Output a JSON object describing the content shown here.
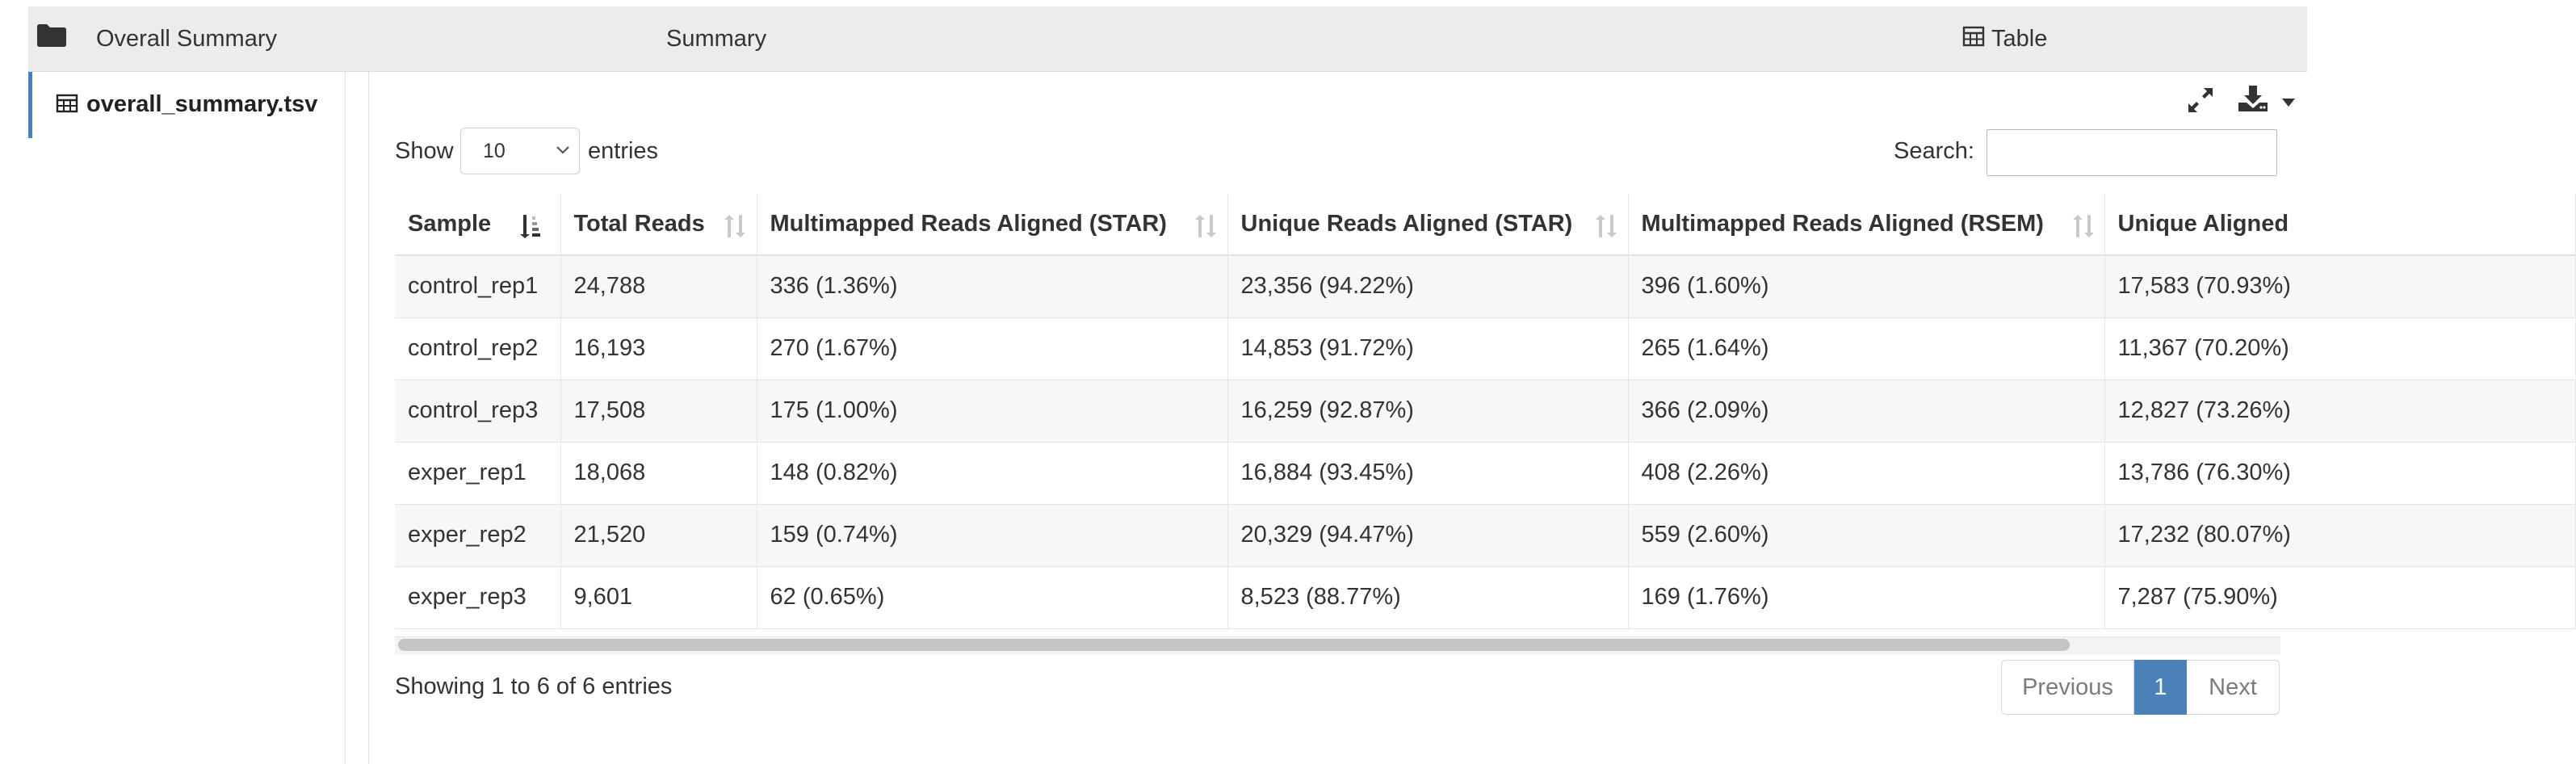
{
  "header": {
    "section_title": "Overall Summary",
    "view_title": "Summary",
    "table_tab_label": "Table"
  },
  "sidebar": {
    "items": [
      {
        "label": "overall_summary.tsv",
        "active": true,
        "icon": "table-icon"
      }
    ]
  },
  "toolbar": {
    "icons": [
      "expand-icon",
      "download-icon",
      "caret-down-icon"
    ]
  },
  "table_controls": {
    "show_label": "Show",
    "page_length": "10",
    "entries_label": "entries",
    "search_label": "Search:",
    "search_value": ""
  },
  "table": {
    "columns": [
      {
        "label": "Sample",
        "sorted": "ascending"
      },
      {
        "label": "Total Reads",
        "sorted": "none"
      },
      {
        "label": "Multimapped Reads Aligned (STAR)",
        "sorted": "none"
      },
      {
        "label": "Unique Reads Aligned (STAR)",
        "sorted": "none"
      },
      {
        "label": "Multimapped Reads Aligned (RSEM)",
        "sorted": "none"
      },
      {
        "label": "Unique Aligned",
        "sorted": "none"
      }
    ],
    "rows": [
      [
        "control_rep1",
        "24,788",
        "336 (1.36%)",
        "23,356 (94.22%)",
        "396 (1.60%)",
        "17,583 (70.93%)"
      ],
      [
        "control_rep2",
        "16,193",
        "270 (1.67%)",
        "14,853 (91.72%)",
        "265 (1.64%)",
        "11,367 (70.20%)"
      ],
      [
        "control_rep3",
        "17,508",
        "175 (1.00%)",
        "16,259 (92.87%)",
        "366 (2.09%)",
        "12,827 (73.26%)"
      ],
      [
        "exper_rep1",
        "18,068",
        "148 (0.82%)",
        "16,884 (93.45%)",
        "408 (2.26%)",
        "13,786 (76.30%)"
      ],
      [
        "exper_rep2",
        "21,520",
        "159 (0.74%)",
        "20,329 (94.47%)",
        "559 (2.60%)",
        "17,232 (80.07%)"
      ],
      [
        "exper_rep3",
        "9,601",
        "62 (0.65%)",
        "8,523 (88.77%)",
        "169 (1.76%)",
        "7,287 (75.90%)"
      ]
    ]
  },
  "footer": {
    "info": "Showing 1 to 6 of 6 entries",
    "previous_label": "Previous",
    "current_page": "1",
    "next_label": "Next"
  },
  "colors": {
    "accent": "#4a81b8",
    "header_bg": "#ececec",
    "stripe": "#f7f7f7"
  }
}
